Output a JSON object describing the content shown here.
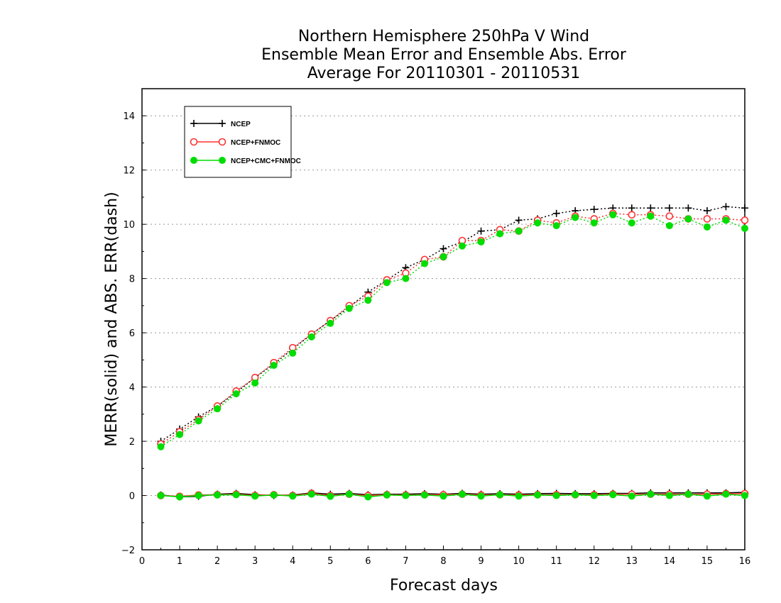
{
  "chart_data": {
    "type": "line",
    "title": [
      "Northern Hemisphere 250hPa V Wind",
      "Ensemble Mean Error and Ensemble Abs. Error",
      "Average For 20110301 - 20110531"
    ],
    "xlabel": "Forecast days",
    "ylabel": "MERR(solid) and ABS. ERR(dash)",
    "xlim": [
      0,
      16
    ],
    "ylim": [
      -2,
      15
    ],
    "xticks": [
      0,
      1,
      2,
      3,
      4,
      5,
      6,
      7,
      8,
      9,
      10,
      11,
      12,
      13,
      14,
      15,
      16
    ],
    "yticks": [
      -2,
      0,
      2,
      4,
      6,
      8,
      10,
      12,
      14
    ],
    "grid": true,
    "legend_position": "top-left",
    "x": [
      0.5,
      1,
      1.5,
      2,
      2.5,
      3,
      3.5,
      4,
      4.5,
      5,
      5.5,
      6,
      6.5,
      7,
      7.5,
      8,
      8.5,
      9,
      9.5,
      10,
      10.5,
      11,
      11.5,
      12,
      12.5,
      13,
      13.5,
      14,
      14.5,
      15,
      15.5,
      16
    ],
    "series": [
      {
        "name": "NCEP",
        "color": "#000000",
        "marker": "plus",
        "abs_err": [
          2.0,
          2.45,
          2.9,
          3.3,
          3.8,
          4.35,
          4.85,
          5.4,
          5.95,
          6.45,
          6.95,
          7.5,
          7.95,
          8.4,
          8.7,
          9.1,
          9.35,
          9.75,
          9.8,
          10.15,
          10.2,
          10.4,
          10.5,
          10.55,
          10.6,
          10.6,
          10.6,
          10.6,
          10.6,
          10.5,
          10.65,
          10.6
        ],
        "mean_err": [
          0.02,
          -0.05,
          -0.03,
          0.05,
          0.08,
          0.03,
          0.0,
          0.02,
          0.1,
          0.05,
          0.08,
          0.03,
          0.05,
          0.05,
          0.07,
          0.05,
          0.08,
          0.05,
          0.07,
          0.05,
          0.07,
          0.08,
          0.07,
          0.07,
          0.08,
          0.08,
          0.1,
          0.1,
          0.1,
          0.1,
          0.1,
          0.12
        ]
      },
      {
        "name": "NCEP+FNMOC",
        "color": "#ff3333",
        "marker": "open-circle",
        "abs_err": [
          1.9,
          2.35,
          2.8,
          3.3,
          3.85,
          4.35,
          4.9,
          5.45,
          5.95,
          6.45,
          7.0,
          7.35,
          7.95,
          8.2,
          8.7,
          8.8,
          9.4,
          9.4,
          9.8,
          9.75,
          10.15,
          10.05,
          10.3,
          10.2,
          10.4,
          10.35,
          10.35,
          10.3,
          10.2,
          10.2,
          10.2,
          10.15
        ],
        "mean_err": [
          0.0,
          -0.03,
          0.02,
          0.03,
          0.05,
          0.0,
          0.03,
          0.0,
          0.08,
          0.0,
          0.05,
          0.0,
          0.03,
          0.02,
          0.03,
          0.03,
          0.05,
          0.02,
          0.03,
          0.02,
          0.03,
          0.03,
          0.03,
          0.03,
          0.05,
          0.05,
          0.05,
          0.05,
          0.05,
          0.05,
          0.07,
          0.07
        ]
      },
      {
        "name": "NCEP+CMC+FNMOC",
        "color": "#00dd00",
        "marker": "filled-circle",
        "abs_err": [
          1.8,
          2.25,
          2.75,
          3.2,
          3.75,
          4.15,
          4.8,
          5.25,
          5.85,
          6.35,
          6.9,
          7.2,
          7.85,
          8.0,
          8.55,
          8.8,
          9.2,
          9.35,
          9.65,
          9.75,
          10.05,
          9.95,
          10.25,
          10.05,
          10.35,
          10.05,
          10.3,
          9.95,
          10.2,
          9.9,
          10.15,
          9.85
        ],
        "mean_err": [
          0.0,
          -0.05,
          0.0,
          0.02,
          0.03,
          -0.02,
          0.02,
          -0.02,
          0.05,
          -0.03,
          0.05,
          -0.05,
          0.02,
          0.0,
          0.02,
          -0.02,
          0.05,
          -0.02,
          0.03,
          -0.02,
          0.02,
          0.0,
          0.03,
          0.0,
          0.03,
          -0.02,
          0.05,
          0.0,
          0.05,
          -0.02,
          0.05,
          0.0
        ]
      }
    ]
  }
}
